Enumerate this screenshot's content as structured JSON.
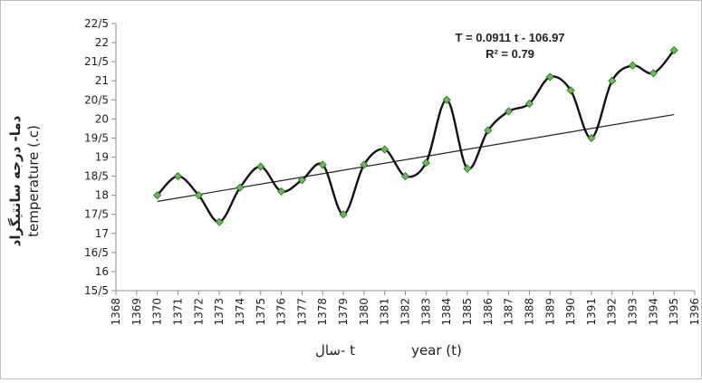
{
  "chart_data": {
    "type": "line",
    "x": [
      1370,
      1371,
      1372,
      1373,
      1374,
      1375,
      1376,
      1377,
      1378,
      1379,
      1380,
      1381,
      1382,
      1383,
      1384,
      1385,
      1386,
      1387,
      1388,
      1389,
      1390,
      1391,
      1392,
      1393,
      1394,
      1395
    ],
    "series": [
      {
        "values": [
          18.0,
          18.5,
          18.0,
          17.3,
          18.2,
          18.75,
          18.1,
          18.4,
          18.8,
          17.5,
          18.8,
          19.2,
          18.5,
          18.85,
          20.5,
          18.7,
          19.7,
          20.2,
          20.4,
          21.1,
          20.75,
          19.5,
          21.0,
          21.4,
          21.2,
          21.8
        ]
      }
    ],
    "ylim": [
      15.5,
      22.5
    ],
    "xlim": [
      1368,
      1396
    ],
    "ylabel_fa": "دما- درجه سانتیگراد",
    "ylabel_en": "temperature (.c)",
    "xlabel_fa": "سال- t",
    "xlabel_en": "year (t)",
    "y_ticks": [
      "15/5",
      "16",
      "16/5",
      "17",
      "17/5",
      "18",
      "18/5",
      "19",
      "19/5",
      "20",
      "20/5",
      "21",
      "21/5",
      "22",
      "22/5"
    ],
    "x_ticks": [
      "1368",
      "1369",
      "1370",
      "1371",
      "1372",
      "1373",
      "1374",
      "1375",
      "1376",
      "1377",
      "1378",
      "1379",
      "1380",
      "1381",
      "1382",
      "1383",
      "1384",
      "1385",
      "1386",
      "1387",
      "1388",
      "1389",
      "1390",
      "1391",
      "1392",
      "1393",
      "1394",
      "1395",
      "1396"
    ],
    "trendline": {
      "slope": 0.0911,
      "intercept": -106.97
    },
    "equation": "T = 0.0911 t - 106.97",
    "r_squared": "R² = 0.79",
    "marker_color": "#5ec24a",
    "line_color": "#111111",
    "grid": false
  }
}
